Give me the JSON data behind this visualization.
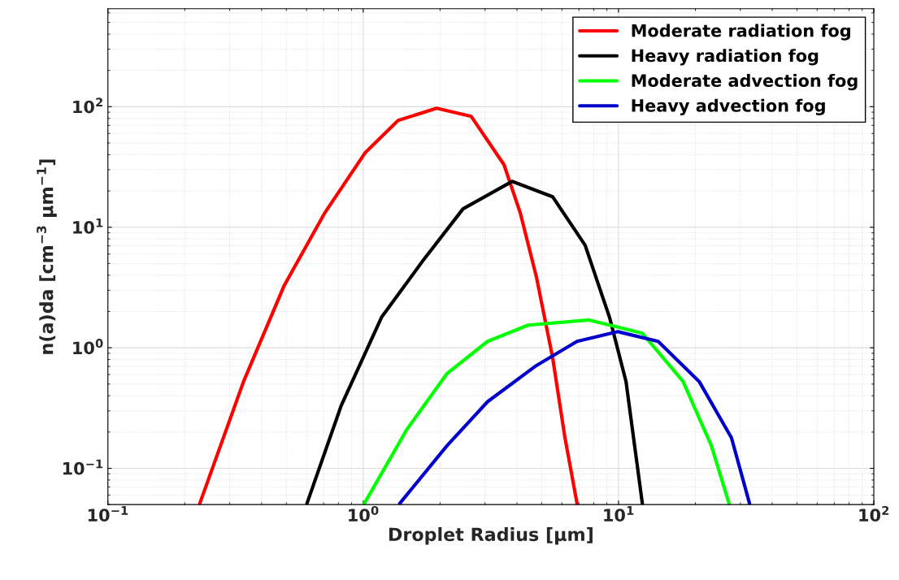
{
  "chart_data": {
    "type": "line",
    "xlabel": "Droplet Radius [μm]",
    "ylabel": "n(a)da [cm$^{−3}$ μm$^{−1}$]",
    "log": "xy",
    "xlim": [
      0.1,
      100
    ],
    "ylim": [
      0.05,
      650
    ],
    "xticks": [
      {
        "value": 0.1,
        "label": "10$^{−1}$"
      },
      {
        "value": 1,
        "label": "10$^{0}$"
      },
      {
        "value": 10,
        "label": "10$^{1}$"
      },
      {
        "value": 100,
        "label": "10$^{2}$"
      }
    ],
    "yticks": [
      {
        "value": 0.1,
        "label": "10$^{−1}$"
      },
      {
        "value": 1,
        "label": "10$^{0}$"
      },
      {
        "value": 10,
        "label": "10$^{1}$"
      },
      {
        "value": 100,
        "label": "10$^{2}$"
      }
    ],
    "grid": true,
    "legend": "top right",
    "line_style": "solid",
    "marker": "none",
    "series": [
      {
        "name": "Moderate radiation fog",
        "color": "#ff0000",
        "x": [
          0.229,
          0.34,
          0.491,
          0.708,
          1.02,
          1.37,
          1.94,
          2.65,
          3.56,
          4.12,
          4.77,
          5.52,
          6.17,
          6.88
        ],
        "values": [
          0.051,
          0.525,
          3.3,
          13.2,
          41.7,
          77,
          97,
          83,
          33,
          13.2,
          3.86,
          0.83,
          0.179,
          0.051
        ]
      },
      {
        "name": "Heavy radiation fog",
        "color": "#000000",
        "x": [
          0.602,
          0.82,
          1.18,
          1.71,
          2.46,
          3.83,
          5.52,
          7.4,
          9.22,
          10.7,
          12.4
        ],
        "values": [
          0.051,
          0.331,
          1.79,
          5.25,
          14.2,
          24,
          17.9,
          7.1,
          1.79,
          0.525,
          0.051
        ]
      },
      {
        "name": "Moderate advection fog",
        "color": "#00ff00",
        "x": [
          1.01,
          1.48,
          2.13,
          3.07,
          4.43,
          7.67,
          12.4,
          17.9,
          23.1,
          27.1
        ],
        "values": [
          0.051,
          0.209,
          0.612,
          1.13,
          1.54,
          1.7,
          1.32,
          0.525,
          0.154,
          0.051
        ]
      },
      {
        "name": "Heavy advection fog",
        "color": "#0000cd",
        "x": [
          1.39,
          2.13,
          3.07,
          4.77,
          6.88,
          9.94,
          14.3,
          20.7,
          27.7,
          32.6
        ],
        "values": [
          0.051,
          0.154,
          0.357,
          0.713,
          1.13,
          1.36,
          1.13,
          0.525,
          0.179,
          0.051
        ]
      }
    ]
  }
}
